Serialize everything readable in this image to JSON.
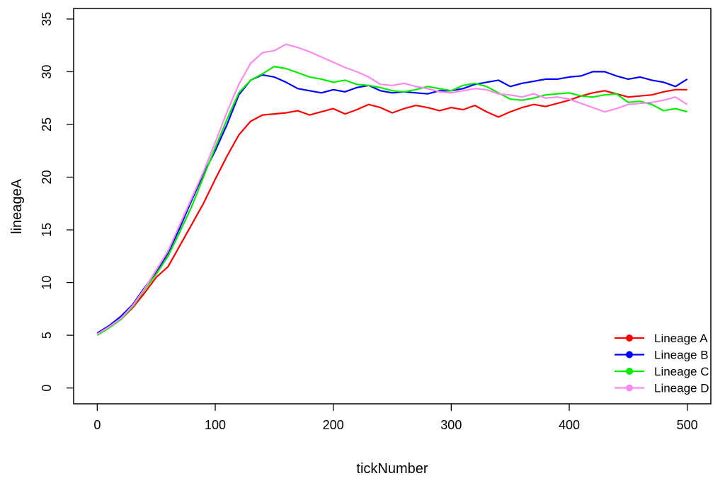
{
  "chart_data": {
    "type": "line",
    "title": "",
    "xlabel": "tickNumber",
    "ylabel": "lineageA",
    "xlim": [
      -20,
      520
    ],
    "ylim": [
      -1.5,
      36
    ],
    "x_ticks": [
      0,
      100,
      200,
      300,
      400,
      500
    ],
    "y_ticks": [
      0,
      5,
      10,
      15,
      20,
      25,
      30,
      35
    ],
    "grid": false,
    "legend_position": "bottom-right",
    "x": [
      0,
      10,
      20,
      30,
      40,
      50,
      60,
      70,
      80,
      90,
      100,
      110,
      120,
      130,
      140,
      150,
      160,
      170,
      180,
      190,
      200,
      210,
      220,
      230,
      240,
      250,
      260,
      270,
      280,
      290,
      300,
      310,
      320,
      330,
      340,
      350,
      360,
      370,
      380,
      390,
      400,
      410,
      420,
      430,
      440,
      450,
      460,
      470,
      480,
      490,
      500
    ],
    "series": [
      {
        "name": "Lineage A",
        "color": "#ff0000",
        "values": [
          5.1,
          5.8,
          6.5,
          7.6,
          9.0,
          10.5,
          11.5,
          13.5,
          15.5,
          17.5,
          19.8,
          22.0,
          24.0,
          25.3,
          25.9,
          26.0,
          26.1,
          26.3,
          25.9,
          26.2,
          26.5,
          26.0,
          26.4,
          26.9,
          26.6,
          26.1,
          26.5,
          26.8,
          26.6,
          26.3,
          26.6,
          26.4,
          26.8,
          26.2,
          25.7,
          26.2,
          26.6,
          26.9,
          26.7,
          27.0,
          27.3,
          27.7,
          28.0,
          28.2,
          27.9,
          27.6,
          27.7,
          27.8,
          28.1,
          28.3,
          28.3
        ]
      },
      {
        "name": "Lineage B",
        "color": "#0000ff",
        "values": [
          5.2,
          5.9,
          6.8,
          7.9,
          9.5,
          11.0,
          12.8,
          15.2,
          17.8,
          20.3,
          22.5,
          25.0,
          27.8,
          29.2,
          29.7,
          29.5,
          29.0,
          28.4,
          28.2,
          28.0,
          28.3,
          28.1,
          28.5,
          28.7,
          28.2,
          28.0,
          28.1,
          28.0,
          27.9,
          28.2,
          28.2,
          28.4,
          28.8,
          29.0,
          29.2,
          28.6,
          28.9,
          29.1,
          29.3,
          29.3,
          29.5,
          29.6,
          30.0,
          30.0,
          29.6,
          29.3,
          29.5,
          29.2,
          29.0,
          28.6,
          29.3
        ]
      },
      {
        "name": "Lineage C",
        "color": "#00ee00",
        "values": [
          5.0,
          5.7,
          6.5,
          7.7,
          9.3,
          10.8,
          12.5,
          14.8,
          17.2,
          20.0,
          22.8,
          25.5,
          28.0,
          29.2,
          29.8,
          30.5,
          30.3,
          29.9,
          29.5,
          29.3,
          29.0,
          29.2,
          28.8,
          28.7,
          28.5,
          28.2,
          28.1,
          28.3,
          28.6,
          28.4,
          28.2,
          28.7,
          28.9,
          28.6,
          28.0,
          27.4,
          27.3,
          27.5,
          27.8,
          27.9,
          28.0,
          27.7,
          27.6,
          27.8,
          27.9,
          27.1,
          27.2,
          26.9,
          26.3,
          26.5,
          26.2
        ]
      },
      {
        "name": "Lineage D",
        "color": "#ff88ee",
        "values": [
          5.1,
          5.8,
          6.6,
          7.8,
          9.4,
          11.2,
          13.0,
          15.5,
          18.0,
          20.5,
          23.3,
          26.2,
          28.8,
          30.8,
          31.8,
          32.0,
          32.6,
          32.3,
          31.9,
          31.4,
          30.9,
          30.4,
          30.0,
          29.5,
          28.8,
          28.7,
          28.9,
          28.6,
          28.4,
          28.1,
          28.0,
          28.2,
          28.4,
          28.3,
          27.9,
          27.8,
          27.6,
          27.9,
          27.5,
          27.6,
          27.4,
          27.0,
          26.6,
          26.2,
          26.5,
          26.9,
          27.0,
          27.1,
          27.3,
          27.6,
          26.9
        ]
      }
    ]
  }
}
